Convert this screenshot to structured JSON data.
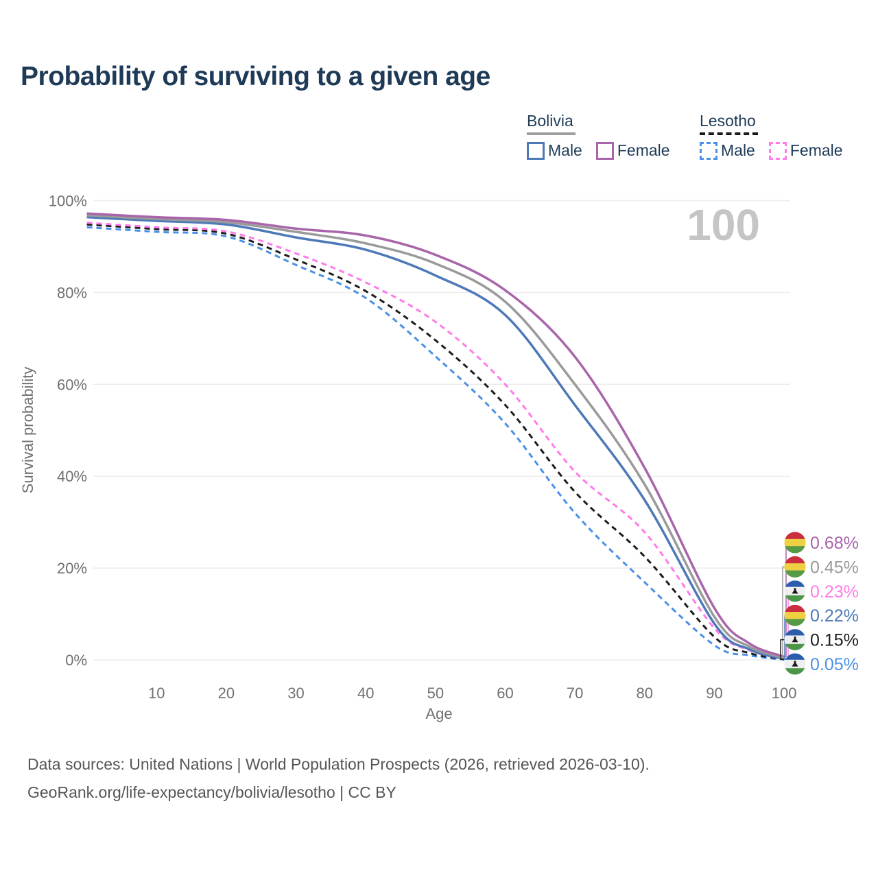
{
  "title": "Probability of surviving to a given age",
  "highlight": {
    "age": "100"
  },
  "legend": {
    "groups": [
      {
        "label": "Bolivia",
        "line_style": "solid",
        "line_color": "#9e9e9e",
        "items": [
          {
            "label": "Male",
            "color": "#4d79b8",
            "dashed": false
          },
          {
            "label": "Female",
            "color": "#a965a9",
            "dashed": false
          }
        ]
      },
      {
        "label": "Lesotho",
        "line_style": "dashed",
        "line_color": "#1a1a1a",
        "items": [
          {
            "label": "Male",
            "color": "#4a90e8",
            "dashed": true
          },
          {
            "label": "Female",
            "color": "#ff7bea",
            "dashed": true
          }
        ]
      }
    ]
  },
  "chart_data": {
    "type": "line",
    "title": "Probability of surviving to a given age",
    "xlabel": "Age",
    "ylabel": "Survival probability",
    "x_range": [
      0,
      100
    ],
    "y_range": [
      0,
      100
    ],
    "grid": "horizontal",
    "highlight_age": 100,
    "x_ticks": [
      {
        "label": "10",
        "value": 10
      },
      {
        "label": "20",
        "value": 20
      },
      {
        "label": "30",
        "value": 30
      },
      {
        "label": "40",
        "value": 40
      },
      {
        "label": "50",
        "value": 50
      },
      {
        "label": "60",
        "value": 60
      },
      {
        "label": "70",
        "value": 70
      },
      {
        "label": "80",
        "value": 80
      },
      {
        "label": "90",
        "value": 90
      },
      {
        "label": "100",
        "value": 100
      }
    ],
    "y_ticks": [
      {
        "label": "0%",
        "value": 0
      },
      {
        "label": "20%",
        "value": 20
      },
      {
        "label": "40%",
        "value": 40
      },
      {
        "label": "60%",
        "value": 60
      },
      {
        "label": "80%",
        "value": 80
      },
      {
        "label": "100%",
        "value": 100
      }
    ],
    "ages": [
      0,
      10,
      20,
      30,
      40,
      50,
      60,
      70,
      80,
      90,
      95,
      100
    ],
    "series": [
      {
        "name": "Lesotho Male",
        "country": "Lesotho",
        "flag": "lesotho",
        "color": "#4a90e8",
        "dashed": true,
        "end_label": "0.05%",
        "values": [
          94.2,
          93.2,
          92.2,
          86.0,
          78.8,
          66.1,
          51.5,
          32.0,
          16.9,
          3.2,
          1.0,
          0.05
        ]
      },
      {
        "name": "Lesotho (both sexes)",
        "country": "Lesotho",
        "flag": "lesotho",
        "color": "#1c1c1c",
        "dashed": true,
        "end_label": "0.15%",
        "values": [
          94.8,
          93.8,
          92.8,
          87.2,
          80.3,
          69.6,
          55.5,
          36.6,
          22.5,
          5.0,
          1.5,
          0.15
        ]
      },
      {
        "name": "Lesotho Female",
        "country": "Lesotho",
        "flag": "lesotho",
        "color": "#ff7bea",
        "dashed": true,
        "end_label": "0.23%",
        "values": [
          95.2,
          94.2,
          93.3,
          88.5,
          82.2,
          73.6,
          60.0,
          41.0,
          27.8,
          6.9,
          2.1,
          0.23
        ]
      },
      {
        "name": "Bolivia Male",
        "country": "Bolivia",
        "flag": "bolivia",
        "color": "#4d79b8",
        "dashed": false,
        "end_label": "0.22%",
        "values": [
          96.4,
          95.6,
          94.8,
          92.0,
          89.3,
          83.7,
          75.1,
          55.5,
          34.8,
          7.9,
          2.3,
          0.22
        ]
      },
      {
        "name": "Bolivia (both sexes)",
        "country": "Bolivia",
        "flag": "bolivia",
        "color": "#9a9a9a",
        "dashed": false,
        "end_label": "0.45%",
        "values": [
          96.8,
          96.0,
          95.3,
          93.2,
          90.7,
          86.3,
          78.0,
          60.0,
          38.2,
          9.4,
          2.9,
          0.45
        ]
      },
      {
        "name": "Bolivia Female",
        "country": "Bolivia",
        "flag": "bolivia",
        "color": "#a965a9",
        "dashed": false,
        "end_label": "0.68%",
        "values": [
          97.2,
          96.4,
          95.8,
          93.9,
          92.4,
          88.2,
          80.5,
          66.0,
          41.8,
          11.3,
          3.6,
          0.68
        ]
      }
    ],
    "flag_colors": {
      "bolivia": [
        "#cb2f3d",
        "#f0d043",
        "#579a46"
      ],
      "lesotho": [
        "#2b5cad",
        "#efeff2",
        "#4c9747"
      ]
    }
  },
  "footer": {
    "line1": "Data sources: United Nations | World Population Prospects (2026, retrieved 2026-03-10).",
    "line2": "GeoRank.org/life-expectancy/bolivia/lesotho | CC BY"
  }
}
